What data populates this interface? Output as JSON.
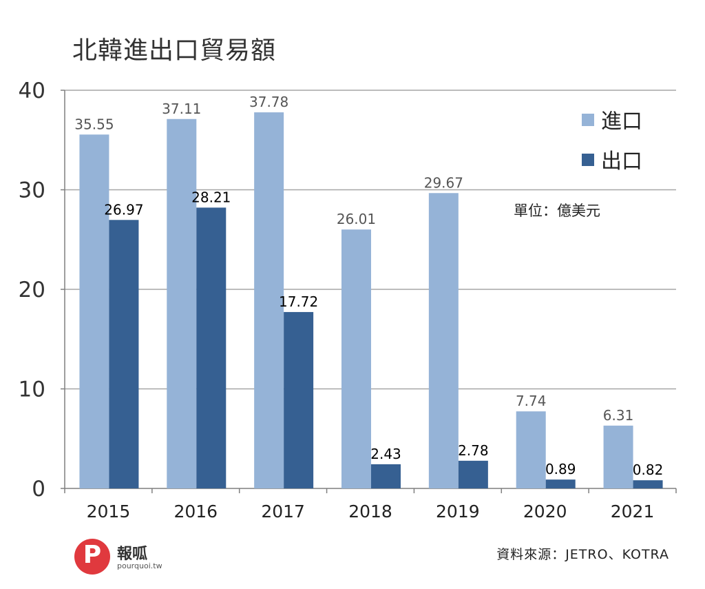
{
  "chart_data": {
    "type": "bar",
    "title": "北韓進出口貿易額",
    "unit_note": "單位：億美元",
    "categories": [
      "2015",
      "2016",
      "2017",
      "2018",
      "2019",
      "2020",
      "2021"
    ],
    "series": [
      {
        "name": "進口",
        "color": "#95b3d7",
        "label_color": "#555555",
        "values": [
          35.55,
          37.11,
          37.78,
          26.01,
          29.67,
          7.74,
          6.31
        ]
      },
      {
        "name": "出口",
        "color": "#366092",
        "label_color": "#000000",
        "values": [
          26.97,
          28.21,
          17.72,
          2.43,
          2.78,
          0.89,
          0.82
        ]
      }
    ],
    "y_ticks": [
      0,
      10,
      20,
      30,
      40
    ],
    "ylim": [
      0,
      40
    ],
    "grid": true,
    "legend_position": "top-right"
  },
  "source": "資料來源：JETRO、KOTRA",
  "logo": {
    "name": "報呱",
    "site": "pourquoi.tw",
    "glyph": "P",
    "color": "#e0393e"
  }
}
